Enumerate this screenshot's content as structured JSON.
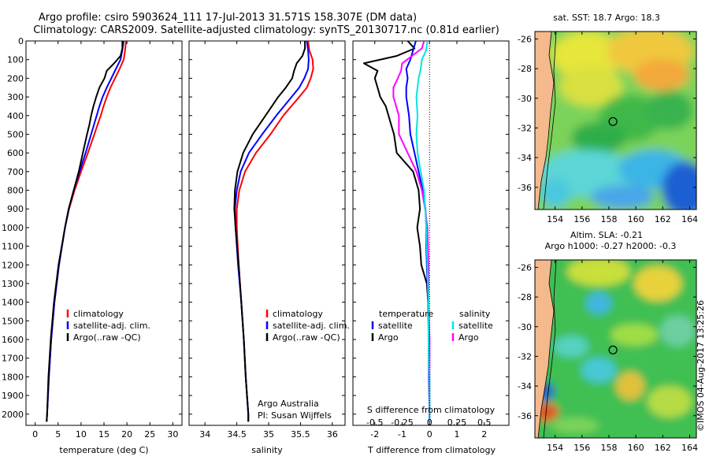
{
  "header": {
    "title_line1": "Argo profile: csiro 5903624_111 17-Jul-2013 31.571S 158.307E (DM data)",
    "title_line2": "Climatology: CARS2009. Satellite-adjusted climatology: synTS_20130717.nc (0.81d earlier)"
  },
  "colors": {
    "climatology": "#ff0000",
    "satellite": "#0000ff",
    "argo": "#000000",
    "sal_satellite": "#00e5e5",
    "sal_argo": "#ff00ff"
  },
  "chart_data": [
    {
      "type": "line",
      "name": "temperature-profile",
      "xlabel": "temperature (deg C)",
      "ylabel": "",
      "xlim": [
        -2,
        32
      ],
      "ylim": [
        2060,
        0
      ],
      "xticks": [
        0,
        5,
        10,
        15,
        20,
        25,
        30
      ],
      "yticks": [
        0,
        100,
        200,
        300,
        400,
        500,
        600,
        700,
        800,
        900,
        1000,
        1100,
        1200,
        1300,
        1400,
        1500,
        1600,
        1700,
        1800,
        1900,
        2000
      ],
      "legend": [
        "climatology",
        "satellite-adj. clim.",
        "Argo(..raw -QC)"
      ],
      "series": [
        {
          "name": "climatology",
          "color_key": "climatology",
          "depth": [
            0,
            50,
            100,
            150,
            200,
            250,
            300,
            350,
            400,
            450,
            500,
            600,
            700,
            800,
            900,
            1000,
            1200,
            1400,
            1600,
            1800,
            2000,
            2040
          ],
          "values": [
            19.8,
            19.6,
            19.3,
            18.4,
            17.4,
            16.4,
            15.6,
            14.9,
            14.3,
            13.6,
            12.9,
            11.5,
            10.0,
            8.6,
            7.4,
            6.5,
            5.2,
            4.2,
            3.5,
            3.0,
            2.6,
            2.5
          ]
        },
        {
          "name": "satellite-adj. clim.",
          "color_key": "satellite",
          "depth": [
            0,
            50,
            100,
            150,
            200,
            250,
            300,
            350,
            400,
            450,
            500,
            600,
            700,
            800,
            900,
            1000,
            1200,
            1400,
            1600,
            1800,
            2000,
            2040
          ],
          "values": [
            19.3,
            19.0,
            18.6,
            17.6,
            16.6,
            15.6,
            14.7,
            14.0,
            13.4,
            12.8,
            12.2,
            11.0,
            9.7,
            8.4,
            7.3,
            6.5,
            5.2,
            4.2,
            3.5,
            3.0,
            2.6,
            2.5
          ]
        },
        {
          "name": "Argo(..raw -QC)",
          "color_key": "argo",
          "depth": [
            0,
            40,
            80,
            120,
            160,
            200,
            250,
            300,
            350,
            400,
            450,
            500,
            600,
            700,
            800,
            900,
            1000,
            1200,
            1400,
            1600,
            1800,
            2000,
            2040
          ],
          "values": [
            19.0,
            19.0,
            18.6,
            17.2,
            15.6,
            15.1,
            14.0,
            13.3,
            12.7,
            12.2,
            11.8,
            11.3,
            10.4,
            9.5,
            8.4,
            7.3,
            6.5,
            5.1,
            4.1,
            3.4,
            2.9,
            2.6,
            2.5
          ]
        }
      ]
    },
    {
      "type": "line",
      "name": "salinity-profile",
      "xlabel": "salinity",
      "xlim": [
        33.75,
        36.2
      ],
      "ylim": [
        2060,
        0
      ],
      "xticks": [
        34,
        34.5,
        35,
        35.5,
        36
      ],
      "legend": [
        "climatology",
        "satellite-adj. clim.",
        "Argo(..raw -QC)"
      ],
      "annotation": [
        "Argo Australia",
        "PI: Susan Wijffels"
      ],
      "series": [
        {
          "name": "climatology",
          "color_key": "climatology",
          "depth": [
            0,
            50,
            100,
            150,
            200,
            250,
            300,
            400,
            500,
            600,
            700,
            800,
            900,
            1000,
            1200,
            1400,
            1600,
            1800,
            2000,
            2040
          ],
          "values": [
            35.62,
            35.64,
            35.69,
            35.7,
            35.66,
            35.6,
            35.48,
            35.23,
            35.03,
            34.8,
            34.63,
            34.54,
            34.5,
            34.5,
            34.53,
            34.57,
            34.61,
            34.64,
            34.68,
            34.68
          ]
        },
        {
          "name": "satellite-adj. clim.",
          "color_key": "satellite",
          "depth": [
            0,
            50,
            100,
            150,
            200,
            250,
            300,
            400,
            500,
            600,
            700,
            800,
            900,
            1000,
            1200,
            1400,
            1600,
            1800,
            2000,
            2040
          ],
          "values": [
            35.6,
            35.62,
            35.63,
            35.62,
            35.56,
            35.48,
            35.36,
            35.12,
            34.9,
            34.69,
            34.56,
            34.5,
            34.47,
            34.48,
            34.52,
            34.57,
            34.61,
            34.64,
            34.68,
            34.68
          ]
        },
        {
          "name": "Argo(..raw -QC)",
          "color_key": "argo",
          "depth": [
            0,
            40,
            80,
            120,
            160,
            200,
            250,
            300,
            400,
            500,
            600,
            700,
            800,
            900,
            1000,
            1200,
            1400,
            1600,
            1800,
            2000,
            2040
          ],
          "values": [
            35.57,
            35.57,
            35.53,
            35.44,
            35.4,
            35.37,
            35.27,
            35.15,
            34.95,
            34.75,
            34.6,
            34.51,
            34.47,
            34.46,
            34.48,
            34.53,
            34.57,
            34.61,
            34.64,
            34.68,
            34.68
          ]
        }
      ]
    },
    {
      "type": "line",
      "name": "difference-profile",
      "xlabel": "T difference from climatology",
      "top_label": "S difference from climatology",
      "xlim": [
        -2.8,
        2.9
      ],
      "ylim": [
        2060,
        0
      ],
      "xticks": [
        -2,
        -1,
        0,
        1,
        2
      ],
      "s_ticks": [
        -0.5,
        -0.25,
        0,
        0.25,
        0.5
      ],
      "s_tick_labels": [
        "-0.5",
        "-0.25",
        "0",
        "0.25",
        "0.5"
      ],
      "legend_temperature_title": "temperature",
      "legend_salinity_title": "salinity",
      "legend_temperature": [
        "satellite",
        "Argo"
      ],
      "legend_salinity": [
        "satellite",
        "Argo"
      ],
      "series": [
        {
          "name": "temperature satellite",
          "color_key": "satellite",
          "depth": [
            0,
            50,
            100,
            150,
            200,
            250,
            300,
            400,
            500,
            600,
            700,
            800,
            900,
            1000,
            1100,
            1200,
            1400,
            1600,
            1800,
            2040
          ],
          "values": [
            -0.5,
            -0.6,
            -0.7,
            -0.85,
            -0.8,
            -0.85,
            -0.85,
            -0.75,
            -0.7,
            -0.55,
            -0.4,
            -0.25,
            -0.15,
            -0.12,
            -0.12,
            -0.1,
            -0.05,
            -0.03,
            -0.02,
            0.0
          ]
        },
        {
          "name": "temperature Argo",
          "color_key": "argo",
          "depth": [
            0,
            40,
            80,
            120,
            160,
            200,
            250,
            300,
            350,
            400,
            450,
            500,
            600,
            700,
            800,
            900,
            1000,
            1100,
            1200,
            1300,
            1400,
            1600,
            1800,
            2040
          ],
          "values": [
            -0.8,
            -0.55,
            -1.2,
            -2.4,
            -1.9,
            -2.0,
            -1.9,
            -1.8,
            -1.6,
            -1.5,
            -1.4,
            -1.3,
            -1.2,
            -0.6,
            -0.4,
            -0.35,
            -0.45,
            -0.35,
            -0.3,
            -0.1,
            -0.05,
            -0.03,
            -0.02,
            0.0
          ]
        },
        {
          "name": "salinity satellite",
          "color_key": "sal_satellite",
          "depth": [
            0,
            50,
            100,
            150,
            200,
            300,
            400,
            500,
            600,
            700,
            800,
            900,
            1000,
            1200,
            1400,
            1600,
            1800,
            2040
          ],
          "values": [
            -0.02,
            -0.03,
            -0.07,
            -0.08,
            -0.1,
            -0.12,
            -0.11,
            -0.12,
            -0.11,
            -0.08,
            -0.05,
            -0.04,
            -0.03,
            -0.02,
            -0.01,
            -0.01,
            0.0,
            0.0
          ]
        },
        {
          "name": "salinity Argo",
          "color_key": "sal_argo",
          "depth": [
            0,
            40,
            80,
            120,
            160,
            200,
            250,
            300,
            400,
            500,
            600,
            700,
            800,
            900,
            1000,
            1200,
            1400,
            1600,
            1800,
            2040
          ],
          "values": [
            -0.05,
            -0.07,
            -0.16,
            -0.25,
            -0.26,
            -0.29,
            -0.33,
            -0.33,
            -0.28,
            -0.28,
            -0.2,
            -0.12,
            -0.07,
            -0.04,
            -0.02,
            -0.01,
            -0.01,
            0.0,
            0.0,
            0.0
          ]
        }
      ]
    },
    {
      "type": "heatmap",
      "name": "sst-map",
      "title": "sat. SST: 18.7  Argo: 18.3",
      "xticks": [
        154,
        156,
        158,
        160,
        162,
        164
      ],
      "yticks": [
        -26,
        -28,
        -30,
        -32,
        -34,
        -36
      ],
      "xlim": [
        152.5,
        164.5
      ],
      "ylim": [
        -37.5,
        -25.5
      ],
      "marker": {
        "lon": 158.3,
        "lat": -31.57
      }
    },
    {
      "type": "heatmap",
      "name": "sla-map",
      "title_line1": "Altim. SLA: -0.21",
      "title_line2": "Argo h1000: -0.27  h2000: -0.3",
      "xticks": [
        154,
        156,
        158,
        160,
        162,
        164
      ],
      "yticks": [
        -26,
        -28,
        -30,
        -32,
        -34,
        -36
      ],
      "xlim": [
        152.5,
        164.5
      ],
      "ylim": [
        -37.5,
        -25.5
      ],
      "marker": {
        "lon": 158.3,
        "lat": -31.57
      }
    }
  ],
  "footer": {
    "stamp": "©IMOS 04-Aug-2017 13:25:26"
  }
}
